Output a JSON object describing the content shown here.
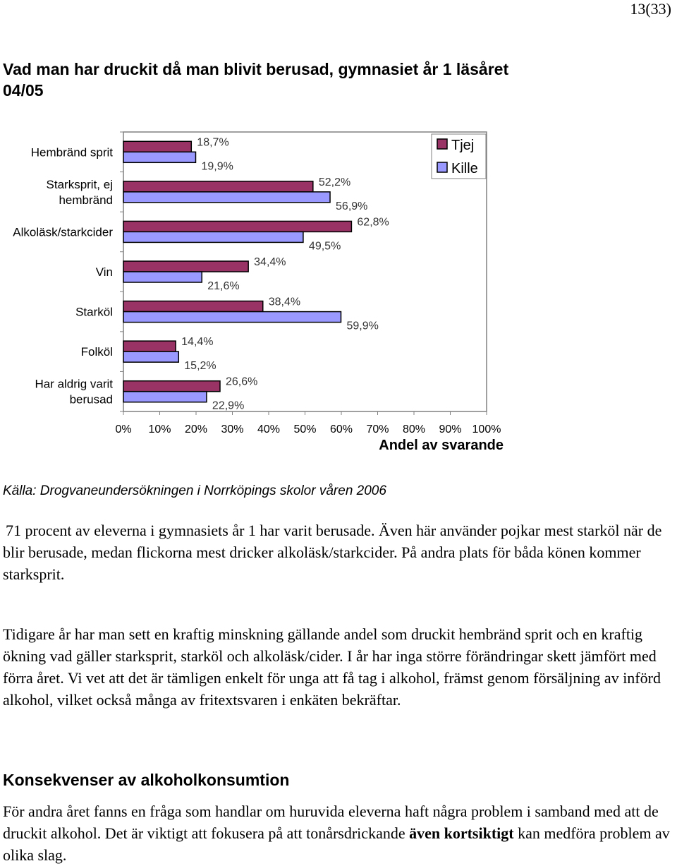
{
  "page_number": "13(33)",
  "title": "Vad man har druckit då man blivit berusad, gymnasiet år 1 läsåret 04/05",
  "chart_data": {
    "type": "bar",
    "orientation": "horizontal",
    "categories": [
      "Hembränd sprit",
      "Starksprit, ej hembränd",
      "Alkoläsk/starkcider",
      "Vin",
      "Starköl",
      "Folköl",
      "Har aldrig varit berusad"
    ],
    "series": [
      {
        "name": "Tjej",
        "values": [
          18.7,
          52.2,
          62.8,
          34.4,
          38.4,
          14.4,
          26.6
        ],
        "labels": [
          "18,7%",
          "52,2%",
          "62,8%",
          "34,4%",
          "38,4%",
          "14,4%",
          "26,6%"
        ]
      },
      {
        "name": "Kille",
        "values": [
          19.9,
          56.9,
          49.5,
          21.6,
          59.9,
          15.2,
          22.9
        ],
        "labels": [
          "19,9%",
          "56,9%",
          "49,5%",
          "21,6%",
          "59,9%",
          "15,2%",
          "22,9%"
        ]
      }
    ],
    "xlim": [
      0,
      100
    ],
    "xticks": [
      "0%",
      "10%",
      "20%",
      "30%",
      "40%",
      "50%",
      "60%",
      "70%",
      "80%",
      "90%",
      "100%"
    ],
    "xlabel": "Andel av svarande",
    "legend_position": "top-right",
    "colors": {
      "Tjej": "#993366",
      "Kille": "#9999ff"
    }
  },
  "source": "Källa: Drogvaneundersökningen i Norrköpings skolor våren 2006",
  "paragraph1": "71 procent av eleverna i gymnasiets år 1 har varit berusade. Även här använder pojkar mest starköl när de blir berusade, medan flickorna mest dricker alkoläsk/starkcider. På andra plats för båda könen kommer starksprit.",
  "paragraph2": "Tidigare år har man sett en kraftig minskning gällande andel som druckit hembränd sprit och en kraftig ökning vad gäller starksprit, starköl och alkoläsk/cider. I år har inga större förändringar skett jämfört med förra året. Vi vet att det är tämligen enkelt för unga att få tag i alkohol, främst genom försäljning av införd alkohol, vilket också många av fritextsvaren i enkäten bekräftar.",
  "section_heading": "Konsekvenser av alkoholkonsumtion",
  "paragraph3": {
    "before": "För andra året fanns en fråga som handlar om huruvida eleverna haft några problem i samband med att de druckit alkohol. Det är viktigt att fokusera på att tonårsdrickande ",
    "bold": "även kortsiktigt",
    "after": " kan medföra problem av olika slag."
  }
}
